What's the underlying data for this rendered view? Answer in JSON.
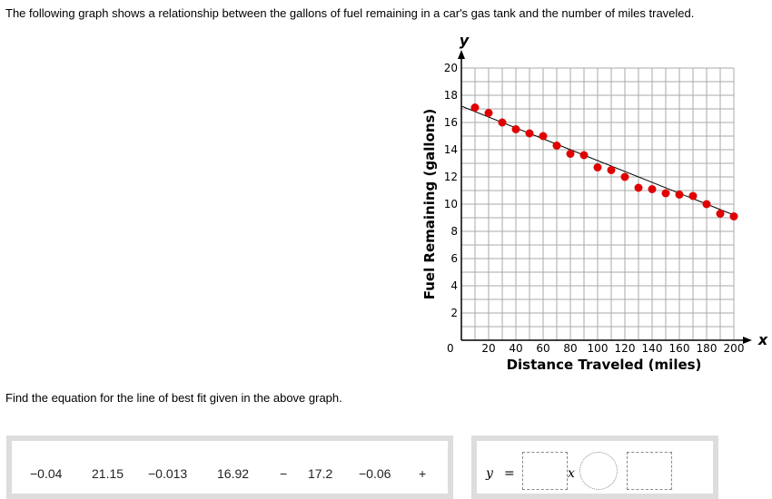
{
  "question_text": "The following graph shows a relationship between the gallons of fuel remaining in a car's gas tank and the number of miles traveled.",
  "prompt_text": "Find the equation for the line of best fit given in the above graph.",
  "tiles": [
    "−0.04",
    "21.15",
    "−0.013",
    "16.92",
    "−",
    "17.2",
    "−0.06",
    "+"
  ],
  "equation": {
    "y_label": "y",
    "equals": "=",
    "x_label": "x"
  },
  "chart_data": {
    "type": "scatter",
    "xlabel": "Distance Traveled (miles)",
    "ylabel": "Fuel Remaining (gallons)",
    "x_axis_letter": "x",
    "y_axis_letter": "y",
    "xlim": [
      0,
      200
    ],
    "ylim": [
      0,
      20
    ],
    "xticks": [
      "0",
      "20",
      "40",
      "60",
      "80",
      "100",
      "120",
      "140",
      "160",
      "180",
      "200"
    ],
    "yticks": [
      "2",
      "4",
      "6",
      "8",
      "10",
      "12",
      "14",
      "16",
      "18",
      "20"
    ],
    "grid": true,
    "x": [
      10,
      20,
      30,
      40,
      50,
      60,
      70,
      80,
      90,
      100,
      110,
      120,
      130,
      140,
      150,
      160,
      170,
      180,
      190,
      200
    ],
    "y": [
      17.1,
      16.7,
      16.0,
      15.5,
      15.2,
      15.0,
      14.3,
      13.7,
      13.6,
      12.7,
      12.5,
      12.0,
      11.2,
      11.1,
      10.8,
      10.7,
      10.6,
      10.0,
      9.3,
      9.1
    ],
    "fit_line": {
      "x": [
        0,
        200
      ],
      "y": [
        17.2,
        9.2
      ]
    },
    "point_color": "#e00000"
  }
}
